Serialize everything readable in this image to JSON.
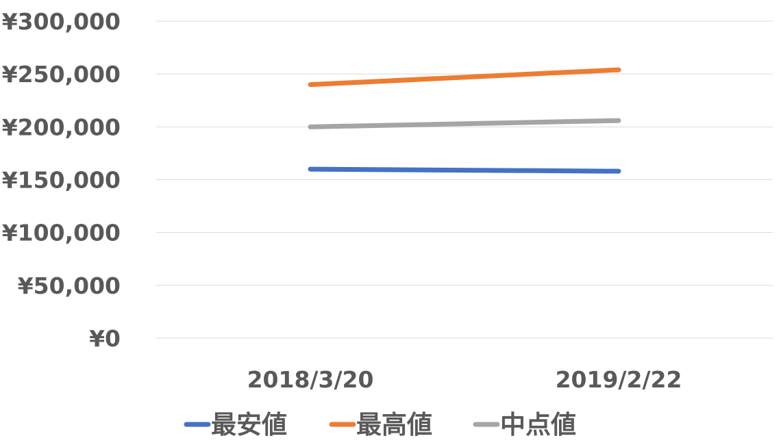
{
  "chart_data": {
    "type": "line",
    "title": "",
    "xlabel": "",
    "ylabel": "",
    "categories": [
      "2018/3/20",
      "2019/2/22"
    ],
    "ylim": [
      0,
      300000
    ],
    "yticks": [
      0,
      50000,
      100000,
      150000,
      200000,
      250000,
      300000
    ],
    "ytick_labels": [
      "¥0",
      "¥50,000",
      "¥100,000",
      "¥150,000",
      "¥200,000",
      "¥250,000",
      "¥300,000"
    ],
    "grid": true,
    "legend_position": "bottom",
    "series": [
      {
        "name": "最安値",
        "values": [
          160000,
          158000
        ],
        "color": "#4472C4"
      },
      {
        "name": "最高値",
        "values": [
          240000,
          254000
        ],
        "color": "#ED7D31"
      },
      {
        "name": "中点値",
        "values": [
          200000,
          206000
        ],
        "color": "#A5A5A5"
      }
    ]
  }
}
